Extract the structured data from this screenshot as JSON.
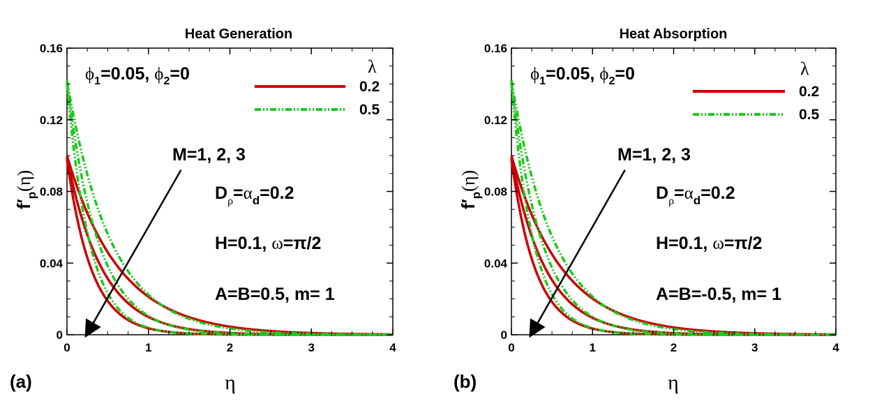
{
  "chart_data": [
    {
      "type": "line",
      "panel_label": "(a)",
      "title": "Heat Generation",
      "xlabel": "η",
      "ylabel": {
        "main": "f′",
        "sub": "p",
        "arg": "(η)"
      },
      "xlim": [
        0,
        4
      ],
      "ylim": [
        0,
        0.16
      ],
      "xticks": [
        "0",
        "1",
        "2",
        "3",
        "4"
      ],
      "yticks": [
        "0",
        "0.04",
        "0.08",
        "0.12",
        "0.16"
      ],
      "legend": {
        "title": "λ",
        "position": "top-right",
        "entries": [
          "0.2",
          "0.5"
        ]
      },
      "annotations": {
        "phi": {
          "phi1": "0.05",
          "phi2": "0"
        },
        "M": "M=1, 2, 3",
        "D": {
          "suffix": "=0.2"
        },
        "H": {
          "pre": "H=0.1, ",
          "post": "=π/2"
        },
        "AB": "A=B=0.5, m= 1"
      },
      "arrow": {
        "from": [
          1.4,
          0.092
        ],
        "to": [
          0.24,
          0.0
        ]
      },
      "series": [
        {
          "name": "λ=0.2, M=1",
          "lambda": "0.2",
          "f0": 0.1,
          "decay": 1.55
        },
        {
          "name": "λ=0.2, M=2",
          "lambda": "0.2",
          "f0": 0.099,
          "decay": 2.3
        },
        {
          "name": "λ=0.2, M=3",
          "lambda": "0.2",
          "f0": 0.098,
          "decay": 3.3
        },
        {
          "name": "λ=0.5, M=1",
          "lambda": "0.5",
          "f0": 0.142,
          "decay": 1.85
        },
        {
          "name": "λ=0.5, M=2",
          "lambda": "0.5",
          "f0": 0.141,
          "decay": 2.6
        },
        {
          "name": "λ=0.5, M=3",
          "lambda": "0.5",
          "f0": 0.14,
          "decay": 3.6
        }
      ]
    },
    {
      "type": "line",
      "panel_label": "(b)",
      "title": "Heat Absorption",
      "xlabel": "η",
      "ylabel": {
        "main": "f′",
        "sub": "p",
        "arg": "(η)"
      },
      "xlim": [
        0,
        4
      ],
      "ylim": [
        0,
        0.16
      ],
      "xticks": [
        "0",
        "1",
        "2",
        "3",
        "4"
      ],
      "yticks": [
        "0",
        "0.04",
        "0.08",
        "0.12",
        "0.16"
      ],
      "legend": {
        "title": "λ",
        "position": "top-right",
        "entries": [
          "0.2",
          "0.5"
        ]
      },
      "annotations": {
        "phi": {
          "phi1": "0.05",
          "phi2": "0"
        },
        "M": "M=1, 2, 3",
        "D": {
          "suffix": "=0.2"
        },
        "H": {
          "pre": "H=0.1, ",
          "post": "=π/2"
        },
        "AB": "A=B=-0.5, m= 1"
      },
      "arrow": {
        "from": [
          1.4,
          0.092
        ],
        "to": [
          0.24,
          0.0
        ]
      },
      "series": [
        {
          "name": "λ=0.2, M=1",
          "lambda": "0.2",
          "f0": 0.1,
          "decay": 1.6
        },
        {
          "name": "λ=0.2, M=2",
          "lambda": "0.2",
          "f0": 0.099,
          "decay": 2.35
        },
        {
          "name": "λ=0.2, M=3",
          "lambda": "0.2",
          "f0": 0.098,
          "decay": 3.35
        },
        {
          "name": "λ=0.5, M=1",
          "lambda": "0.5",
          "f0": 0.142,
          "decay": 1.9
        },
        {
          "name": "λ=0.5, M=2",
          "lambda": "0.5",
          "f0": 0.141,
          "decay": 2.65
        },
        {
          "name": "λ=0.5, M=3",
          "lambda": "0.5",
          "f0": 0.14,
          "decay": 3.65
        }
      ]
    }
  ],
  "colors": {
    "lambda_02": "#cc0000",
    "lambda_05": "#1ec81e",
    "axis": "#000000"
  }
}
